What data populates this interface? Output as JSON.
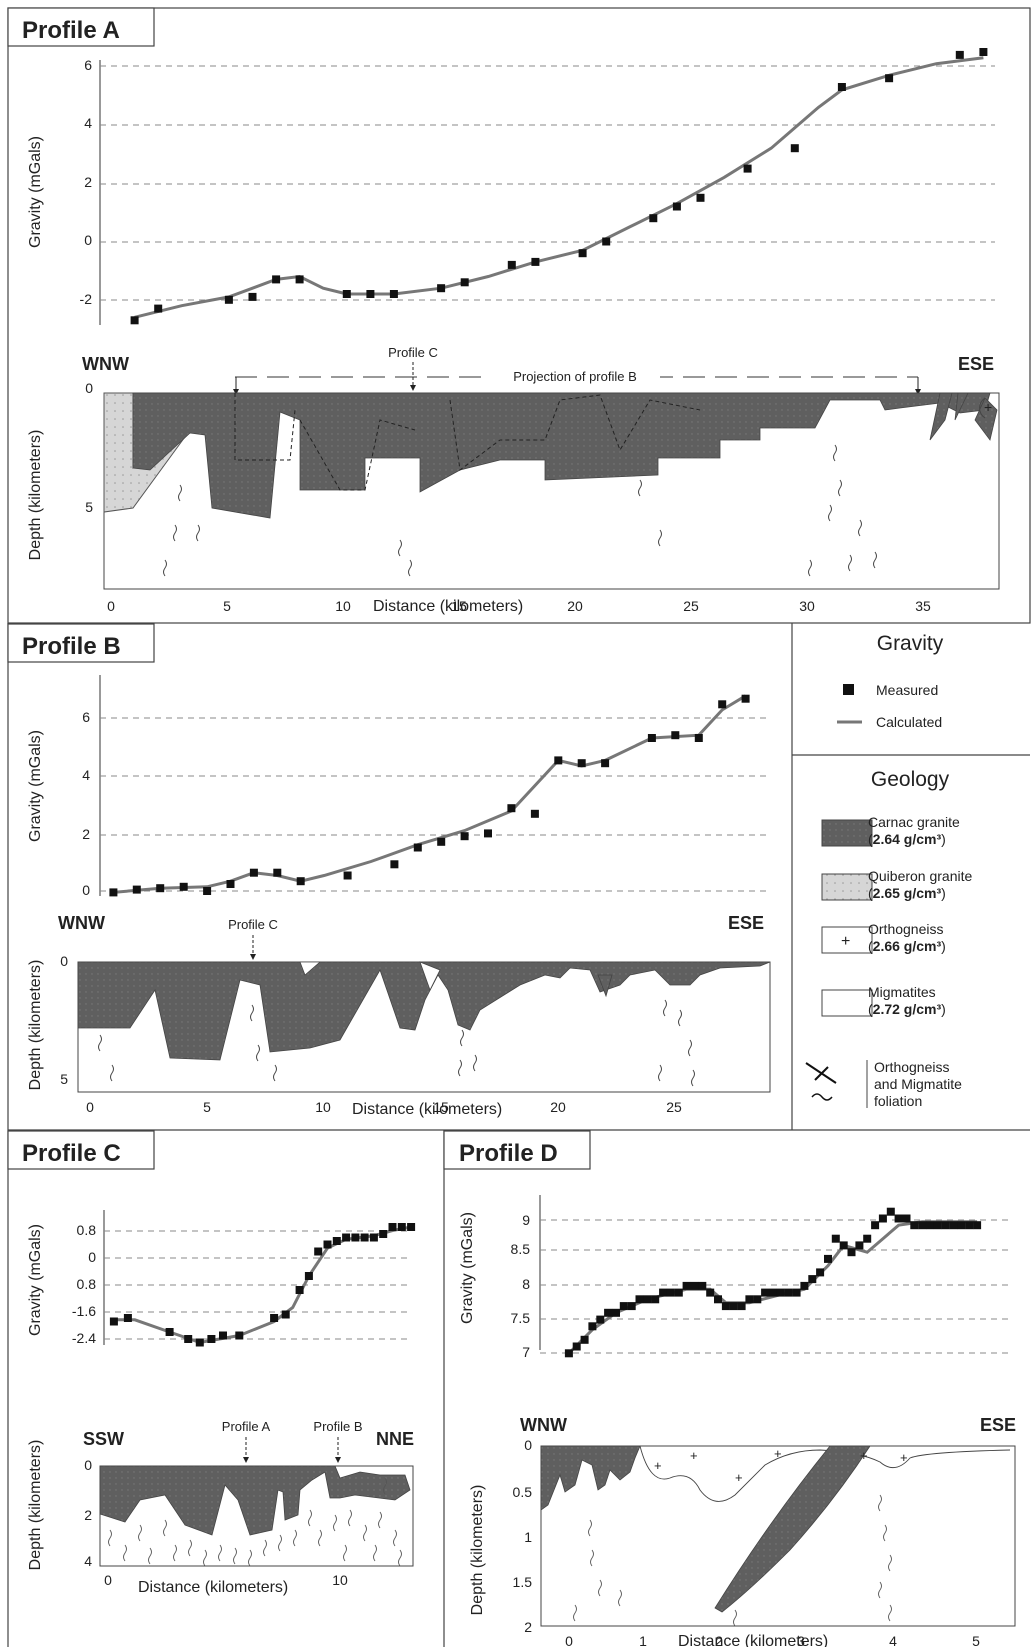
{
  "colors": {
    "granite_carnac": "#5f5f5f",
    "granite_quiberon": "#d4d4d4",
    "calc_line": "#777777",
    "measured": "#111111",
    "grid": "#888888"
  },
  "profileA": {
    "title": "Profile A",
    "gravity_ylabel": "Gravity (mGals)",
    "depth_ylabel": "Depth (kilometers)",
    "xlabel": "Distance (kilometers)",
    "left_dir": "WNW",
    "right_dir": "ESE",
    "annotation_profile_c": "Profile C",
    "annotation_projection": "Projection of profile B",
    "gravity_yticks": [
      "6",
      "4",
      "2",
      "0",
      "-2"
    ],
    "depth_yticks": [
      "0",
      "5"
    ],
    "xticks": [
      "0",
      "5",
      "10",
      "15",
      "20",
      "25",
      "30",
      "35"
    ],
    "chart_data": {
      "type": "scatter",
      "xlim": [
        0,
        38
      ],
      "ylim": [
        -3,
        6.5
      ],
      "measured": {
        "x": [
          1,
          2,
          5,
          6,
          7,
          8,
          10,
          11,
          12,
          14,
          15,
          17,
          18,
          20,
          21,
          23,
          24,
          25,
          27,
          29,
          31,
          33,
          36,
          37
        ],
        "y": [
          -2.7,
          -2.3,
          -2.0,
          -1.9,
          -1.3,
          -1.3,
          -1.8,
          -1.8,
          -1.8,
          -1.6,
          -1.4,
          -0.8,
          -0.7,
          -0.4,
          0.0,
          0.8,
          1.2,
          1.5,
          2.5,
          3.2,
          5.3,
          5.6,
          6.4,
          6.5
        ]
      },
      "calculated": {
        "x": [
          1,
          3,
          5,
          6,
          7,
          8,
          9,
          10,
          12,
          14,
          16,
          18,
          20,
          22,
          24,
          26,
          28,
          30,
          31,
          33,
          35,
          37
        ],
        "y": [
          -2.6,
          -2.2,
          -1.9,
          -1.6,
          -1.3,
          -1.2,
          -1.6,
          -1.8,
          -1.8,
          -1.6,
          -1.2,
          -0.7,
          -0.3,
          0.5,
          1.3,
          2.2,
          3.2,
          4.6,
          5.2,
          5.7,
          6.1,
          6.3
        ]
      }
    }
  },
  "profileB": {
    "title": "Profile B",
    "gravity_ylabel": "Gravity (mGals)",
    "depth_ylabel": "Depth (kilometers)",
    "xlabel": "Distance (kilometers)",
    "left_dir": "WNW",
    "right_dir": "ESE",
    "annotation_profile_c": "Profile C",
    "gravity_yticks": [
      "6",
      "4",
      "2",
      "0"
    ],
    "depth_yticks": [
      "0",
      "5"
    ],
    "xticks": [
      "0",
      "5",
      "10",
      "15",
      "20",
      "25"
    ],
    "chart_data": {
      "type": "scatter",
      "xlim": [
        0,
        29
      ],
      "ylim": [
        -0.3,
        7.5
      ],
      "measured": {
        "x": [
          1,
          2,
          3,
          4,
          5,
          6,
          7,
          8,
          9,
          11,
          13,
          14,
          15,
          16,
          17,
          18,
          19,
          20,
          21,
          22,
          24,
          25,
          26,
          27,
          28
        ],
        "y": [
          -0.1,
          0.0,
          0.05,
          0.1,
          -0.05,
          0.2,
          0.6,
          0.6,
          0.3,
          0.5,
          0.9,
          1.5,
          1.7,
          1.9,
          2.0,
          2.9,
          2.7,
          4.6,
          4.5,
          4.5,
          5.4,
          5.5,
          5.4,
          6.6,
          6.8
        ]
      },
      "calculated": {
        "x": [
          1,
          3,
          5,
          6,
          7,
          8,
          9,
          10,
          12,
          14,
          16,
          18,
          20,
          21,
          22,
          24,
          26,
          27,
          28
        ],
        "y": [
          -0.1,
          0.05,
          0.1,
          0.3,
          0.6,
          0.5,
          0.3,
          0.5,
          1.0,
          1.6,
          2.1,
          2.8,
          4.6,
          4.4,
          4.6,
          5.4,
          5.5,
          6.4,
          6.9
        ]
      }
    }
  },
  "profileC": {
    "title": "Profile C",
    "gravity_ylabel": "Gravity (mGals)",
    "depth_ylabel": "Depth (kilometers)",
    "xlabel": "Distance (kilometers)",
    "left_dir": "SSW",
    "right_dir": "NNE",
    "annotation_profile_a": "Profile A",
    "annotation_profile_b": "Profile B",
    "gravity_yticks": [
      "0.8",
      "0",
      "0.8",
      "-1.6",
      "-2.4"
    ],
    "depth_yticks": [
      "0",
      "2",
      "4"
    ],
    "xticks": [
      "0",
      "10"
    ],
    "chart_data": {
      "type": "scatter",
      "xlim": [
        0,
        14
      ],
      "ylim": [
        -2.8,
        1.2
      ],
      "measured": {
        "x": [
          0.6,
          1.2,
          3.0,
          3.8,
          4.3,
          4.8,
          5.3,
          6.0,
          7.5,
          8.0,
          8.6,
          9.0,
          9.4,
          9.8,
          10.2,
          10.6,
          11.0,
          11.4,
          11.8,
          12.2,
          12.6,
          13.0,
          13.4
        ],
        "y": [
          -1.7,
          -1.6,
          -2.0,
          -2.2,
          -2.3,
          -2.2,
          -2.1,
          -2.1,
          -1.6,
          -1.5,
          -0.8,
          -0.4,
          0.3,
          0.5,
          0.6,
          0.7,
          0.7,
          0.7,
          0.7,
          0.8,
          1.0,
          1.0,
          1.0
        ]
      },
      "calculated": {
        "x": [
          0.6,
          1.5,
          3.0,
          4.3,
          6.0,
          7.5,
          8.3,
          9.0,
          9.8,
          10.6,
          11.8,
          12.6,
          13.4
        ],
        "y": [
          -1.65,
          -1.65,
          -2.0,
          -2.3,
          -2.1,
          -1.7,
          -1.3,
          -0.4,
          0.4,
          0.65,
          0.75,
          0.9,
          1.0
        ]
      }
    }
  },
  "profileD": {
    "title": "Profile D",
    "gravity_ylabel": "Gravity (mGals)",
    "depth_ylabel": "Depth (kilometers)",
    "xlabel": "Distance (kilometers)",
    "left_dir": "WNW",
    "right_dir": "ESE",
    "gravity_yticks": [
      "9",
      "8.5",
      "8",
      "7.5",
      "7"
    ],
    "depth_yticks": [
      "0",
      "0.5",
      "1",
      "1.5",
      "2"
    ],
    "xticks": [
      "0",
      "1",
      "2",
      "3",
      "4",
      "5"
    ],
    "chart_data": {
      "type": "scatter",
      "xlim": [
        -0.1,
        5.3
      ],
      "ylim": [
        6.9,
        9.2
      ],
      "measured": {
        "x": [
          0.0,
          0.1,
          0.2,
          0.3,
          0.4,
          0.5,
          0.6,
          0.7,
          0.8,
          0.9,
          1.0,
          1.1,
          1.2,
          1.3,
          1.4,
          1.5,
          1.6,
          1.7,
          1.8,
          1.9,
          2.0,
          2.1,
          2.2,
          2.3,
          2.4,
          2.5,
          2.6,
          2.7,
          2.8,
          2.9,
          3.0,
          3.1,
          3.2,
          3.3,
          3.4,
          3.5,
          3.6,
          3.7,
          3.8,
          3.9,
          4.0,
          4.1,
          4.2,
          4.3,
          4.4,
          4.5,
          4.6,
          4.7,
          4.8,
          4.9,
          5.0,
          5.1,
          5.2
        ],
        "y": [
          7.0,
          7.1,
          7.2,
          7.4,
          7.5,
          7.6,
          7.6,
          7.7,
          7.7,
          7.8,
          7.8,
          7.8,
          7.9,
          7.9,
          7.9,
          8.0,
          8.0,
          8.0,
          7.9,
          7.8,
          7.7,
          7.7,
          7.7,
          7.8,
          7.8,
          7.9,
          7.9,
          7.9,
          7.9,
          7.9,
          8.0,
          8.1,
          8.2,
          8.4,
          8.7,
          8.6,
          8.5,
          8.6,
          8.7,
          8.9,
          9.0,
          9.1,
          9.0,
          9.0,
          8.9,
          8.9,
          8.9,
          8.9,
          8.9,
          8.9,
          8.9,
          8.9,
          8.9
        ]
      },
      "calculated": {
        "x": [
          0.0,
          0.3,
          0.6,
          1.0,
          1.5,
          1.8,
          2.0,
          2.3,
          2.8,
          3.0,
          3.3,
          3.5,
          3.8,
          4.0,
          4.2,
          4.5,
          5.2
        ],
        "y": [
          7.0,
          7.35,
          7.6,
          7.8,
          7.95,
          7.95,
          7.75,
          7.75,
          7.9,
          7.95,
          8.3,
          8.6,
          8.5,
          8.7,
          8.9,
          8.95,
          8.95
        ]
      }
    }
  },
  "legend": {
    "gravity_title": "Gravity",
    "measured_label": "Measured",
    "calculated_label": "Calculated",
    "geology_title": "Geology",
    "items": [
      {
        "name": "Carnac granite",
        "density": "2.64 g/cm³",
        "open": "(",
        "close": ")"
      },
      {
        "name": "Quiberon granite",
        "density": "2.65 g/cm³",
        "open": "(",
        "close": ")"
      },
      {
        "name": "Orthogneiss",
        "density": "2.66 g/cm³",
        "open": "(",
        "close": ")"
      },
      {
        "name": "Migmatites",
        "density": "2.72 g/cm³",
        "open": "(",
        "close": ")"
      }
    ],
    "foliation_line1": "Orthogneiss",
    "foliation_line2": "and Migmatite",
    "foliation_line3": "foliation"
  }
}
